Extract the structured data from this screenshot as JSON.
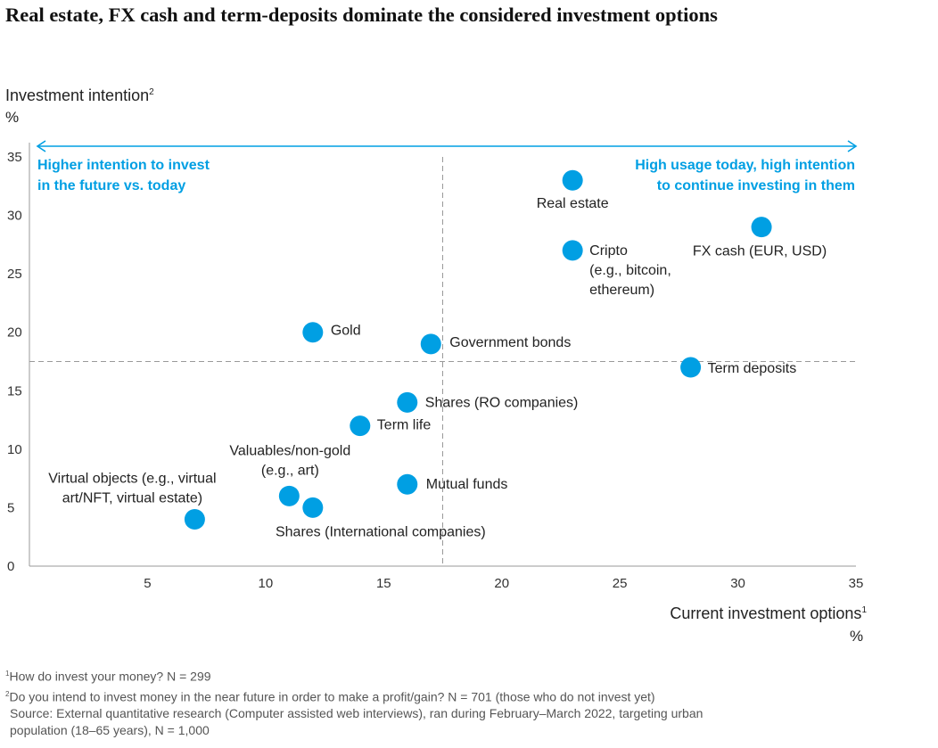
{
  "title": "Real estate, FX cash and term-deposits dominate the considered investment options",
  "footnotes": [
    {
      "mark": "1",
      "text": "How do invest your money? N = 299"
    },
    {
      "mark": "2",
      "text": "Do you intend to invest money in the near future in order to make a profit/gain? N = 701 (those who do not invest yet)"
    }
  ],
  "source": [
    "Source: External quantitative research (Computer assisted web interviews), ran during February–March 2022, targeting urban",
    "population (18–65 years), N = 1,000"
  ],
  "colors": {
    "accent": "#009fe3",
    "axis": "#999999",
    "divider": "#999999"
  },
  "chart_data": {
    "type": "scatter",
    "title": "Real estate, FX cash and term-deposits dominate the considered investment options",
    "xlabel": "Current investment options",
    "xlabel_sup": "1",
    "xunit": "%",
    "ylabel": "Investment intention",
    "ylabel_sup": "2",
    "yunit": "%",
    "xlim": [
      0,
      35
    ],
    "ylim": [
      0,
      35
    ],
    "xticks": [
      5,
      10,
      15,
      20,
      25,
      30,
      35
    ],
    "yticks": [
      0,
      5,
      10,
      15,
      20,
      25,
      30,
      35
    ],
    "grid": false,
    "dividers": {
      "x": 17.5,
      "y": 17.5
    },
    "quadrant_labels": [
      {
        "name": "top-left",
        "lines": [
          "Higher intention to invest",
          "in the future vs. today"
        ]
      },
      {
        "name": "top-right",
        "lines": [
          "High usage today, high intention",
          "to continue investing in them"
        ]
      }
    ],
    "points": [
      {
        "label": [
          "Real estate"
        ],
        "x": 23,
        "y": 33
      },
      {
        "label": [
          "FX cash (EUR, USD)"
        ],
        "x": 31,
        "y": 29
      },
      {
        "label": [
          "Cripto",
          "(e.g., bitcoin,",
          "ethereum)"
        ],
        "x": 23,
        "y": 27
      },
      {
        "label": [
          "Gold"
        ],
        "x": 12,
        "y": 20
      },
      {
        "label": [
          "Government bonds"
        ],
        "x": 17,
        "y": 19
      },
      {
        "label": [
          "Term deposits"
        ],
        "x": 28,
        "y": 17
      },
      {
        "label": [
          "Shares (RO companies)"
        ],
        "x": 16,
        "y": 14
      },
      {
        "label": [
          "Term life"
        ],
        "x": 14,
        "y": 12
      },
      {
        "label": [
          "Valuables/non-gold",
          "(e.g., art)"
        ],
        "x": 11,
        "y": 6
      },
      {
        "label": [
          "Mutual funds"
        ],
        "x": 16,
        "y": 7
      },
      {
        "label": [
          "Shares (International companies)"
        ],
        "x": 12,
        "y": 5
      },
      {
        "label": [
          "Virtual objects (e.g., virtual",
          "art/NFT, virtual estate)"
        ],
        "x": 7,
        "y": 4
      }
    ]
  }
}
